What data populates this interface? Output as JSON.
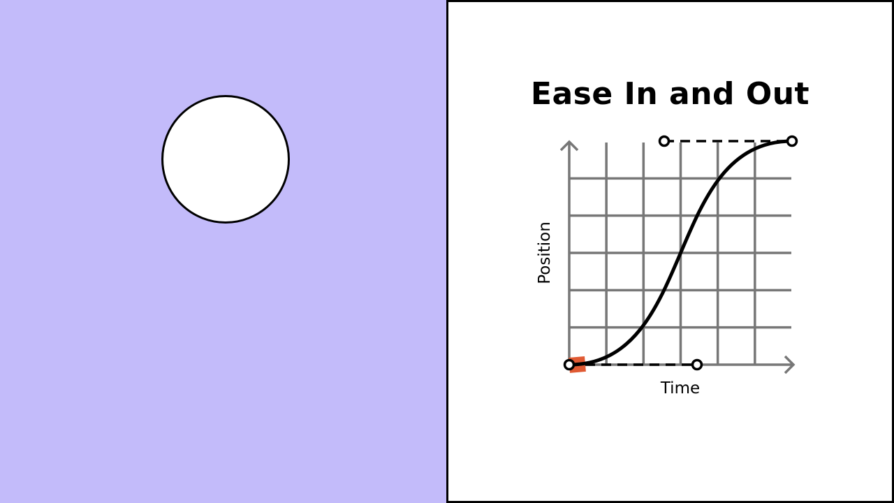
{
  "title": "Ease In and Out",
  "axes": {
    "x_label": "Time",
    "y_label": "Position"
  },
  "colors": {
    "background_left": "#c3bbfa",
    "ball": "#ffffff",
    "grid": "#777777",
    "curve": "#000000",
    "marker": "#e05a33"
  },
  "diagram": {
    "curve": "cubic-bezier ease-in-out",
    "grid_columns": 6,
    "grid_rows": 6
  }
}
